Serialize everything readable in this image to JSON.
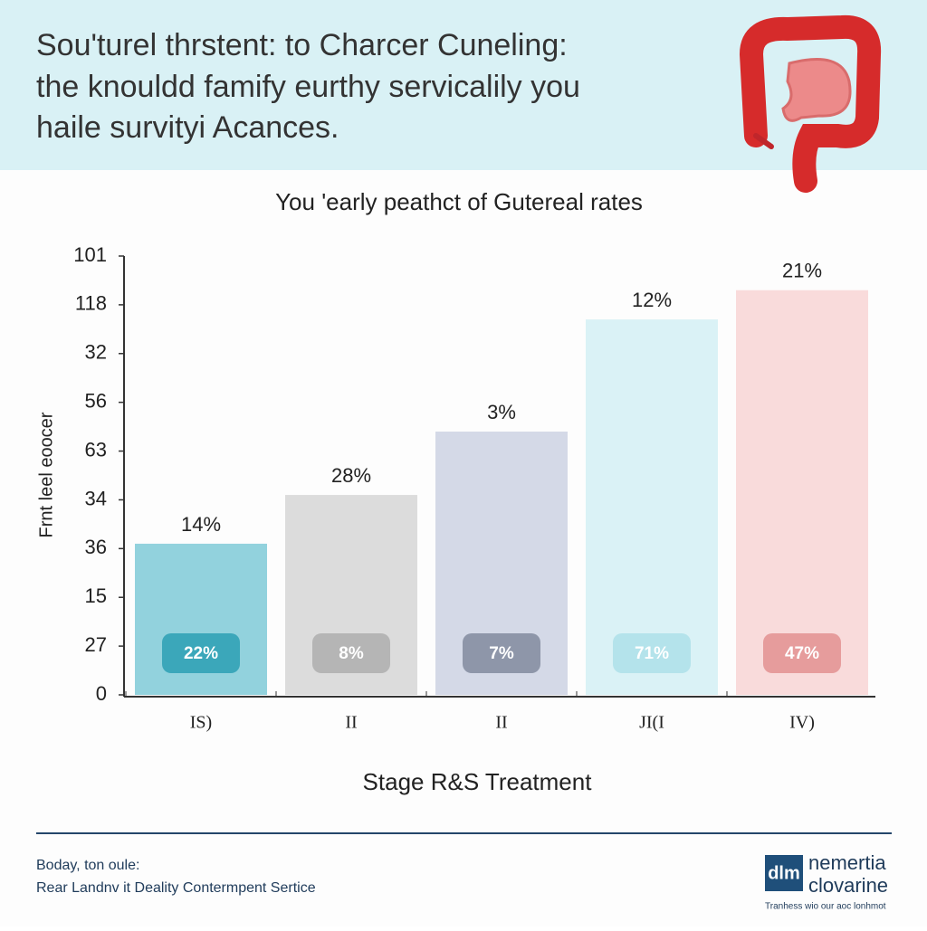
{
  "header": {
    "title_lines": [
      "Sou'turel thrstent: to Charcer Cuneling:",
      "the knouldd famify eurthy servicalily you",
      "haile survityi Acances."
    ]
  },
  "chart_data": {
    "type": "bar",
    "title": "You 'early peathct of Gutereal rates",
    "y_label": "Frnt leel eoocer",
    "x_label": "Stage R&S Treatment",
    "categories": [
      "IS)",
      "II",
      "II",
      "JI(I",
      "IV)"
    ],
    "values": [
      31,
      41,
      54,
      77,
      83
    ],
    "bar_labels": [
      "14%",
      "28%",
      "3%",
      "12%",
      "21%"
    ],
    "badge_labels": [
      "22%",
      "8%",
      "7%",
      "71%",
      "47%"
    ],
    "colors": [
      "#92d2dd",
      "#dcdcdc",
      "#d4d9e7",
      "#daf2f6",
      "#f9dbdb"
    ],
    "badge_colors": [
      "#3ba7ba",
      "#b5b5b5",
      "#8e96a9",
      "#b4e3eb",
      "#e69c9c"
    ],
    "ylim": [
      0,
      90
    ],
    "yticks": [
      0,
      {
        "value": 10,
        "label": "27"
      },
      {
        "value": 20,
        "label": "15"
      },
      {
        "value": 30,
        "label": "36"
      },
      {
        "value": 40,
        "label": "34"
      },
      {
        "value": 50,
        "label": "63"
      },
      {
        "value": 60,
        "label": "56"
      },
      {
        "value": 70,
        "label": "32"
      },
      {
        "value": 80,
        "label": "118"
      },
      {
        "value": 90,
        "label": "101"
      }
    ]
  },
  "footer": {
    "line1": "Boday, ton oule:",
    "line2": "Rear Landnv it Deality Contermpent Sertice"
  },
  "logo": {
    "mark": "dlm",
    "name1": "nemertia",
    "name2": "clovarine",
    "tagline": "Tranhess wio our aoc lonhmot"
  }
}
